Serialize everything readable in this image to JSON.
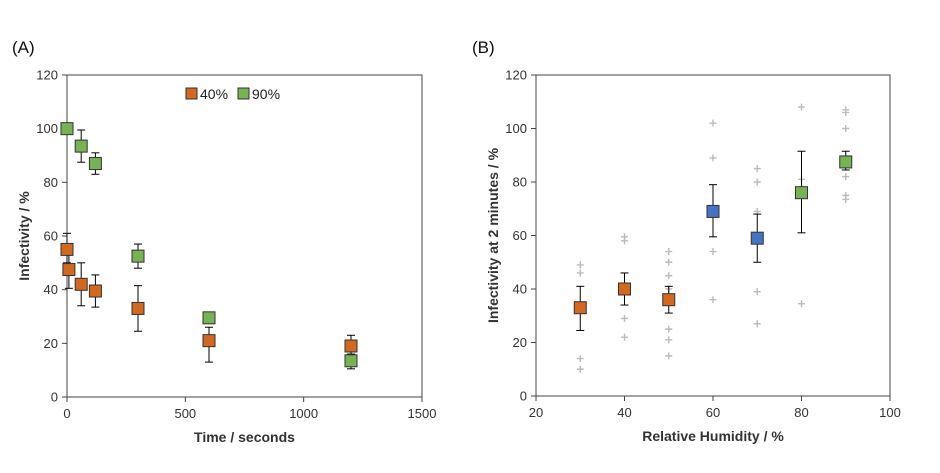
{
  "chart_data": [
    {
      "type": "scatter",
      "panel_label": "(A)",
      "xlabel": "Time / seconds",
      "ylabel": "Infectivity / %",
      "xlim": [
        0,
        1500
      ],
      "ylim": [
        0,
        120
      ],
      "xticks": [
        0,
        500,
        1000,
        1500
      ],
      "yticks": [
        0,
        20,
        40,
        60,
        80,
        100,
        120
      ],
      "legend": {
        "placement": "top-center",
        "entries": [
          "40%",
          "90%"
        ]
      },
      "colors": {
        "40%": "#d2691e",
        "90%": "#77b255"
      },
      "series": [
        {
          "name": "40%",
          "points": [
            {
              "x": 0,
              "y": 55,
              "err_low": 5,
              "err_high": 6
            },
            {
              "x": 8,
              "y": 47.5,
              "err_low": 7,
              "err_high": 7
            },
            {
              "x": 60,
              "y": 42,
              "err_low": 8,
              "err_high": 8
            },
            {
              "x": 120,
              "y": 39.5,
              "err_low": 6,
              "err_high": 6
            },
            {
              "x": 300,
              "y": 33,
              "err_low": 8.5,
              "err_high": 8.5
            },
            {
              "x": 600,
              "y": 21,
              "err_low": 8,
              "err_high": 5
            },
            {
              "x": 1200,
              "y": 19,
              "err_low": 3,
              "err_high": 4
            }
          ]
        },
        {
          "name": "90%",
          "points": [
            {
              "x": 0,
              "y": 100,
              "err_low": 0,
              "err_high": 0
            },
            {
              "x": 60,
              "y": 93.5,
              "err_low": 6,
              "err_high": 6
            },
            {
              "x": 120,
              "y": 87,
              "err_low": 4,
              "err_high": 4
            },
            {
              "x": 300,
              "y": 52.5,
              "err_low": 4.5,
              "err_high": 4.5
            },
            {
              "x": 600,
              "y": 29.5,
              "err_low": 0,
              "err_high": 0
            },
            {
              "x": 1200,
              "y": 13.5,
              "err_low": 3,
              "err_high": 0
            }
          ]
        }
      ]
    },
    {
      "type": "scatter",
      "panel_label": "(B)",
      "xlabel": "Relative Humidity / %",
      "ylabel": "Infectivity at 2 minutes / %",
      "xlim": [
        20,
        100
      ],
      "ylim": [
        0,
        120
      ],
      "xticks": [
        20,
        40,
        60,
        80,
        100
      ],
      "yticks": [
        0,
        20,
        40,
        60,
        80,
        100,
        120
      ],
      "colors": {
        "orange": "#d2691e",
        "blue": "#4472c4",
        "green": "#77b255",
        "replicate": "#bbbbbb"
      },
      "means": [
        {
          "x": 30,
          "y": 33,
          "err_low": 8.5,
          "err_high": 8,
          "color": "orange"
        },
        {
          "x": 40,
          "y": 40,
          "err_low": 6,
          "err_high": 6,
          "color": "orange"
        },
        {
          "x": 50,
          "y": 36,
          "err_low": 5,
          "err_high": 5,
          "color": "orange"
        },
        {
          "x": 60,
          "y": 69,
          "err_low": 9.5,
          "err_high": 10,
          "color": "blue"
        },
        {
          "x": 70,
          "y": 59,
          "err_low": 9,
          "err_high": 9,
          "color": "blue"
        },
        {
          "x": 80,
          "y": 76,
          "err_low": 15,
          "err_high": 15.5,
          "color": "green"
        },
        {
          "x": 90,
          "y": 87.5,
          "err_low": 3,
          "err_high": 4,
          "color": "green"
        }
      ],
      "replicates": [
        {
          "x": 30,
          "y": [
            49,
            46,
            14,
            10
          ]
        },
        {
          "x": 40,
          "y": [
            59.5,
            58,
            29,
            22
          ]
        },
        {
          "x": 50,
          "y": [
            54,
            50,
            45,
            40,
            25,
            21,
            15
          ]
        },
        {
          "x": 60,
          "y": [
            102,
            89,
            54,
            36
          ]
        },
        {
          "x": 70,
          "y": [
            85,
            80,
            69,
            39,
            27
          ]
        },
        {
          "x": 80,
          "y": [
            108,
            81,
            78,
            34.5
          ]
        },
        {
          "x": 90,
          "y": [
            107,
            106,
            100,
            82,
            75,
            73.5
          ]
        }
      ]
    }
  ]
}
